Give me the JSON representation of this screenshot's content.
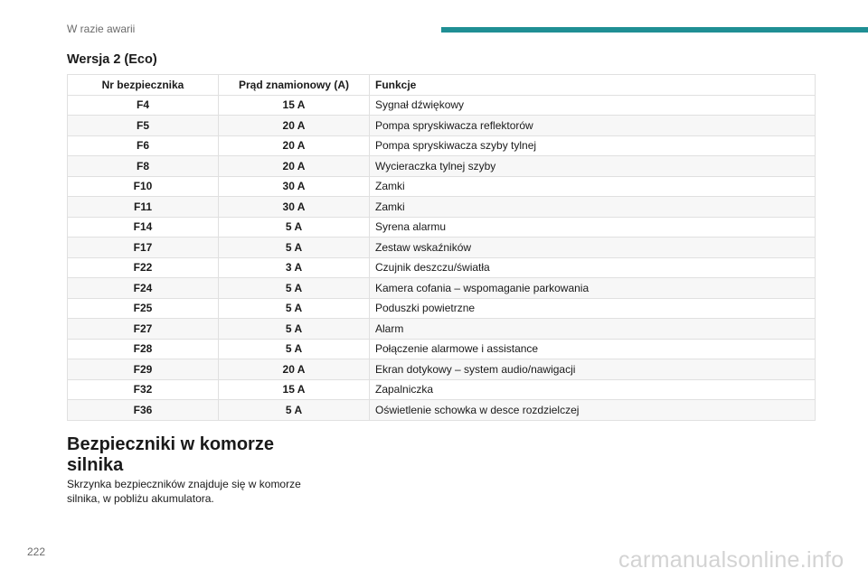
{
  "header": {
    "section_title": "W razie awarii",
    "accent_color": "#1f8f94"
  },
  "version_title": "Wersja 2 (Eco)",
  "table": {
    "columns": [
      "Nr bezpiecznika",
      "Prąd znamionowy (A)",
      "Funkcje"
    ],
    "rows": [
      {
        "fuse": "F4",
        "current": "15 A",
        "function": "Sygnał dźwiękowy"
      },
      {
        "fuse": "F5",
        "current": "20 A",
        "function": "Pompa spryskiwacza reflektorów"
      },
      {
        "fuse": "F6",
        "current": "20 A",
        "function": "Pompa spryskiwacza szyby tylnej"
      },
      {
        "fuse": "F8",
        "current": "20 A",
        "function": "Wycieraczka tylnej szyby"
      },
      {
        "fuse": "F10",
        "current": "30 A",
        "function": "Zamki"
      },
      {
        "fuse": "F11",
        "current": "30 A",
        "function": "Zamki"
      },
      {
        "fuse": "F14",
        "current": "5 A",
        "function": "Syrena alarmu"
      },
      {
        "fuse": "F17",
        "current": "5 A",
        "function": "Zestaw wskaźników"
      },
      {
        "fuse": "F22",
        "current": "3 A",
        "function": "Czujnik deszczu/światła"
      },
      {
        "fuse": "F24",
        "current": "5 A",
        "function": "Kamera cofania – wspomaganie parkowania"
      },
      {
        "fuse": "F25",
        "current": "5 A",
        "function": "Poduszki powietrzne"
      },
      {
        "fuse": "F27",
        "current": "5 A",
        "function": "Alarm"
      },
      {
        "fuse": "F28",
        "current": "5 A",
        "function": "Połączenie alarmowe i assistance"
      },
      {
        "fuse": "F29",
        "current": "20 A",
        "function": "Ekran dotykowy – system audio/nawigacji"
      },
      {
        "fuse": "F32",
        "current": "15 A",
        "function": "Zapalniczka"
      },
      {
        "fuse": "F36",
        "current": "5 A",
        "function": "Oświetlenie schowka w desce rozdzielczej"
      }
    ]
  },
  "section": {
    "heading": "Bezpieczniki w komorze silnika",
    "body": "Skrzynka bezpieczników znajduje się w komorze silnika, w pobliżu akumulatora."
  },
  "page_number": "222",
  "watermark": "carmanualsonline.info"
}
